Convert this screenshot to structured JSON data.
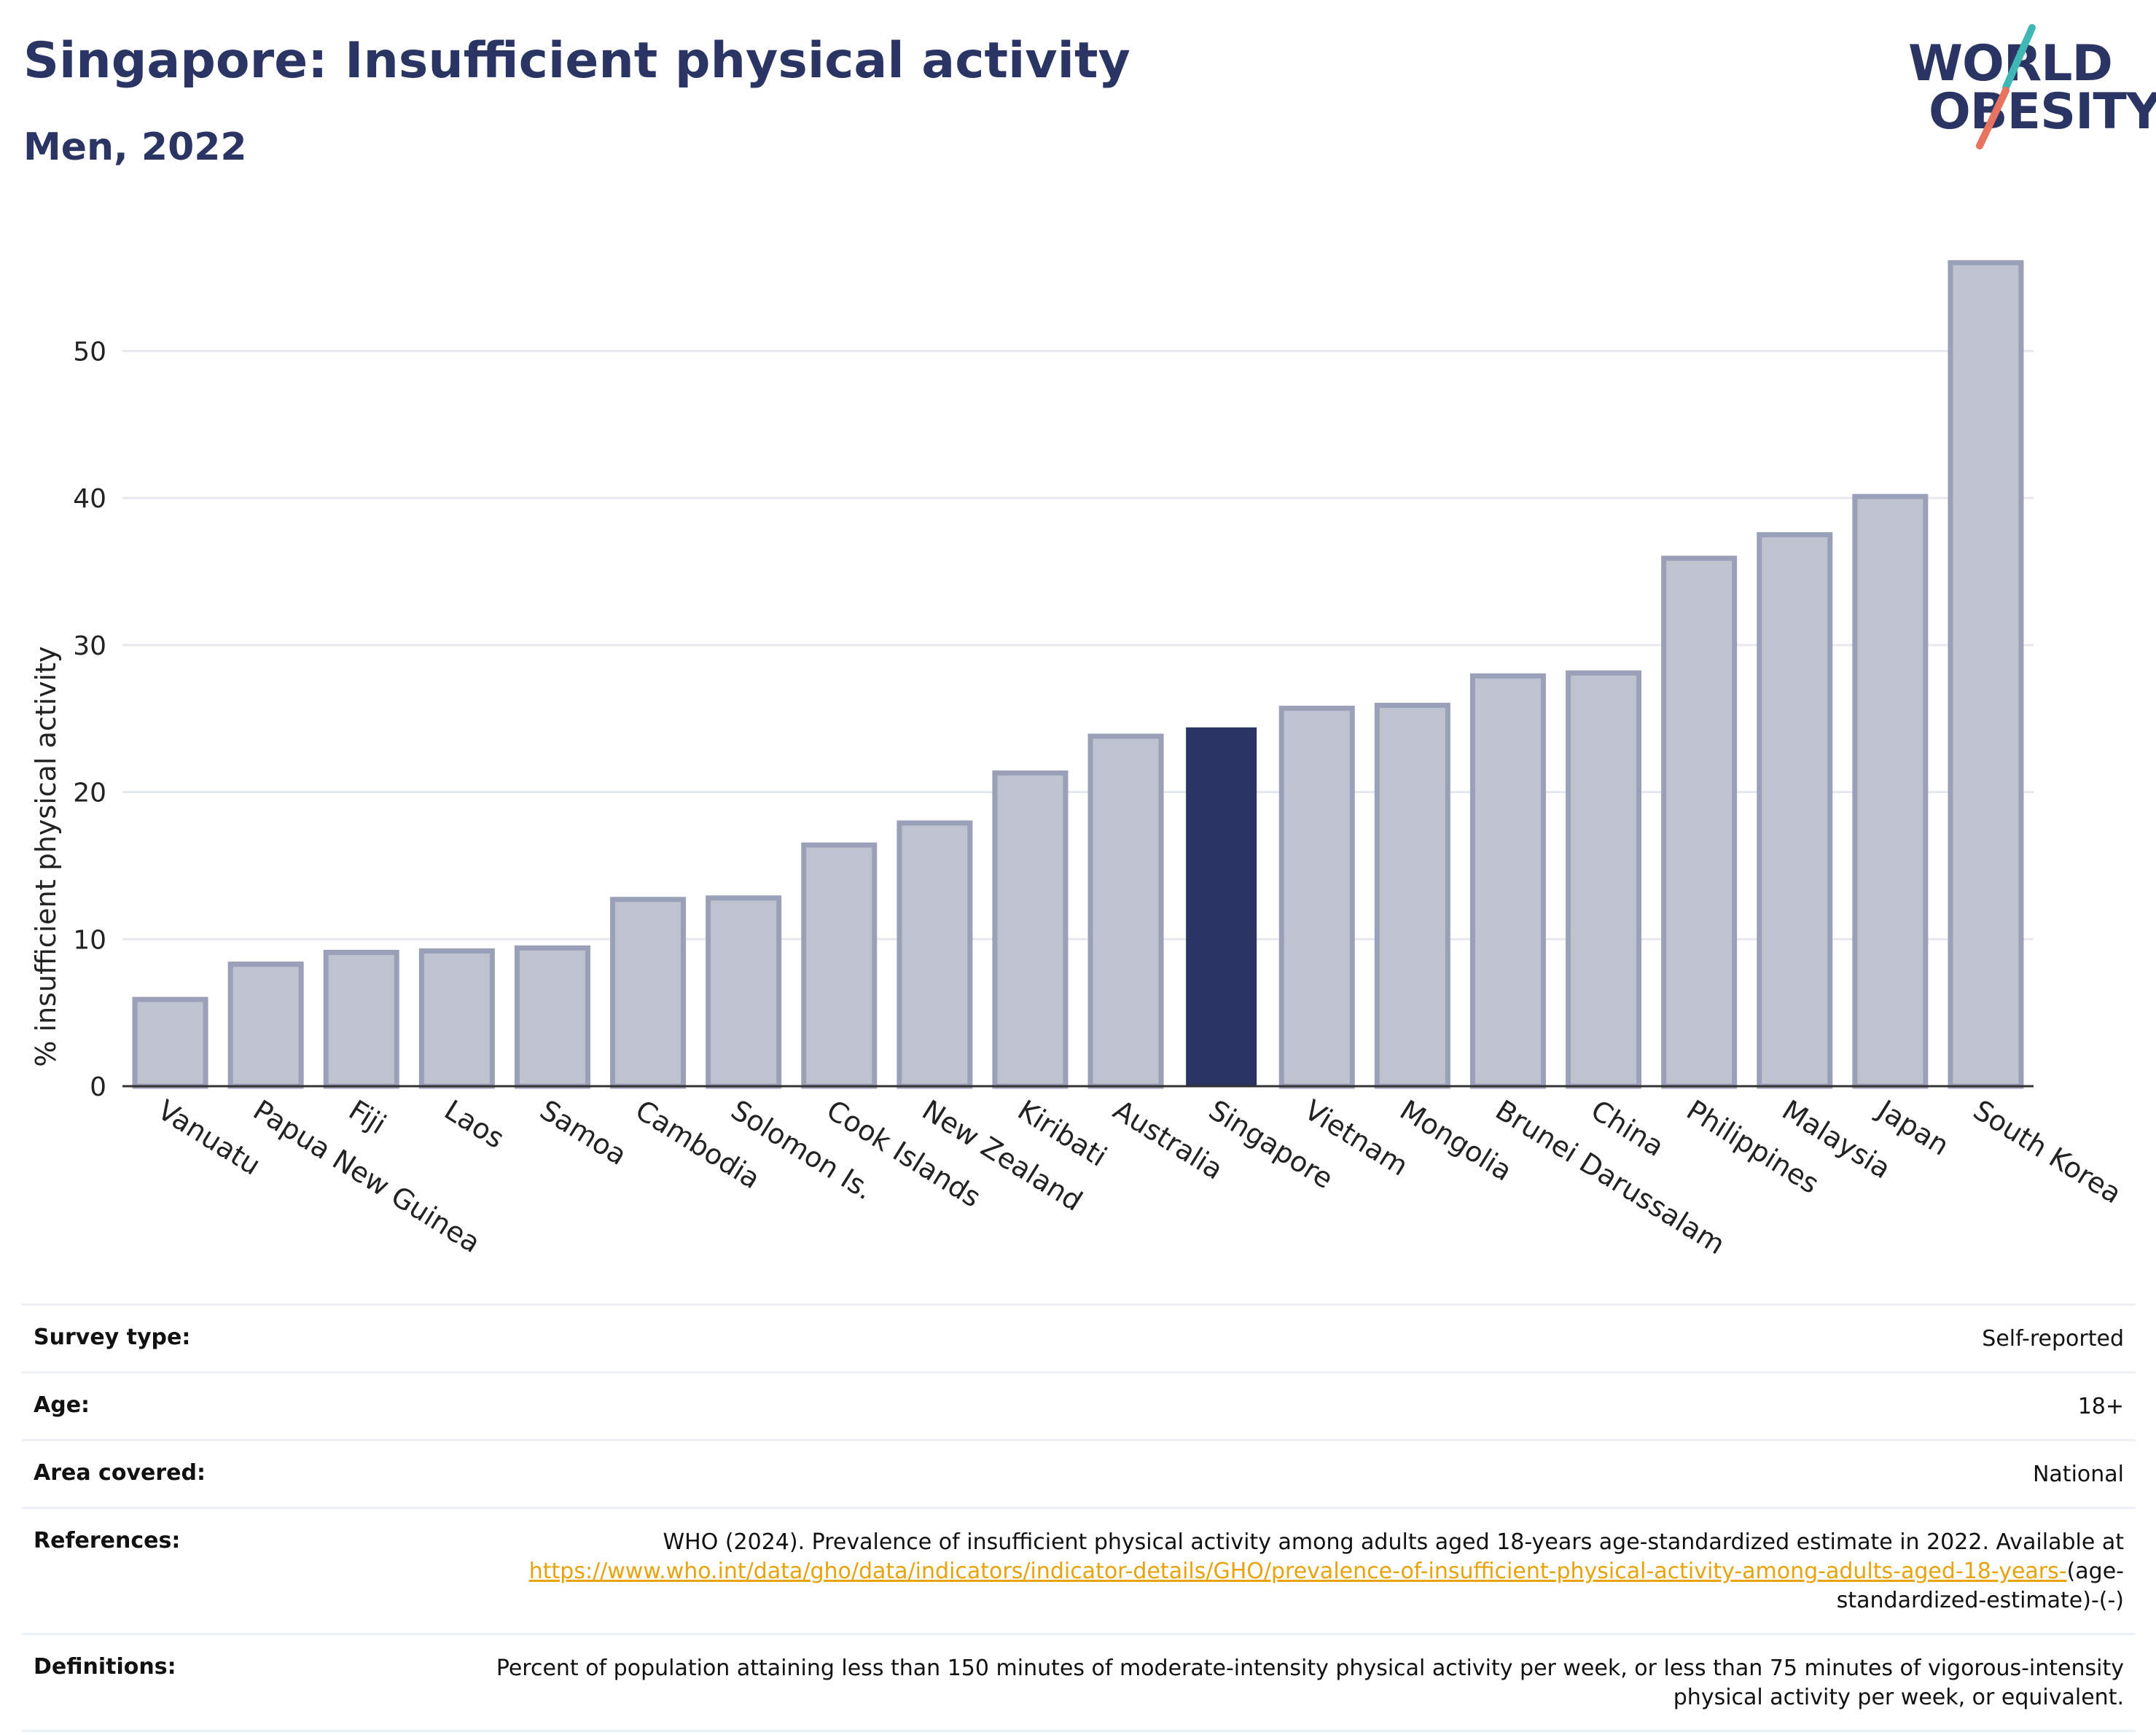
{
  "header": {
    "title": "Singapore: Insufficient physical activity",
    "subtitle": "Men, 2022"
  },
  "logo": {
    "line1": "WORLD",
    "line2": "OBESITY",
    "accent_teal": "#3fb8b5",
    "accent_coral": "#e8735f"
  },
  "colors": {
    "highlight_bar": "#2b3563",
    "other_bar_fill": "#bfc3d0",
    "other_bar_stroke": "#9aa0b8",
    "grid": "#e6e8ef",
    "axis": "#333333"
  },
  "chart_data": {
    "type": "bar",
    "title": "Singapore: Insufficient physical activity",
    "subtitle": "Men, 2022",
    "xlabel": "",
    "ylabel": "% insufficient physical activity",
    "ylim": [
      0,
      58
    ],
    "yticks": [
      0,
      10,
      20,
      30,
      40,
      50
    ],
    "grid": true,
    "highlight": "Singapore",
    "categories": [
      "Vanuatu",
      "Papua New Guinea",
      "Fiji",
      "Laos",
      "Samoa",
      "Cambodia",
      "Solomon Is.",
      "Cook Islands",
      "New Zealand",
      "Kiribati",
      "Australia",
      "Singapore",
      "Vietnam",
      "Mongolia",
      "Brunei Darussalam",
      "China",
      "Philippines",
      "Malaysia",
      "Japan",
      "South Korea"
    ],
    "values": [
      5.9,
      8.3,
      9.1,
      9.2,
      9.4,
      12.7,
      12.8,
      16.4,
      17.9,
      21.3,
      23.8,
      24.4,
      25.7,
      25.9,
      27.9,
      28.1,
      35.9,
      37.5,
      40.1,
      56.0
    ]
  },
  "info": {
    "survey_type": {
      "label": "Survey type:",
      "value": "Self-reported"
    },
    "age": {
      "label": "Age:",
      "value": "18+"
    },
    "area": {
      "label": "Area covered:",
      "value": "National"
    },
    "references": {
      "label": "References:",
      "text": "WHO (2024). Prevalence of insufficient physical activity among adults aged 18-years age-standardized estimate in 2022. Available at",
      "link": "https://www.who.int/data/gho/data/indicators/indicator-details/GHO/prevalence-of-insufficient-physical-activity-among-adults-aged-18-years-",
      "suffix": "(age-standardized-estimate)-(-)"
    },
    "definitions": {
      "label": "Definitions:",
      "value": "Percent of population attaining less than 150 minutes of moderate-intensity physical activity per week, or less than 75 minutes of vigorous-intensity physical activity per week, or equivalent."
    }
  }
}
